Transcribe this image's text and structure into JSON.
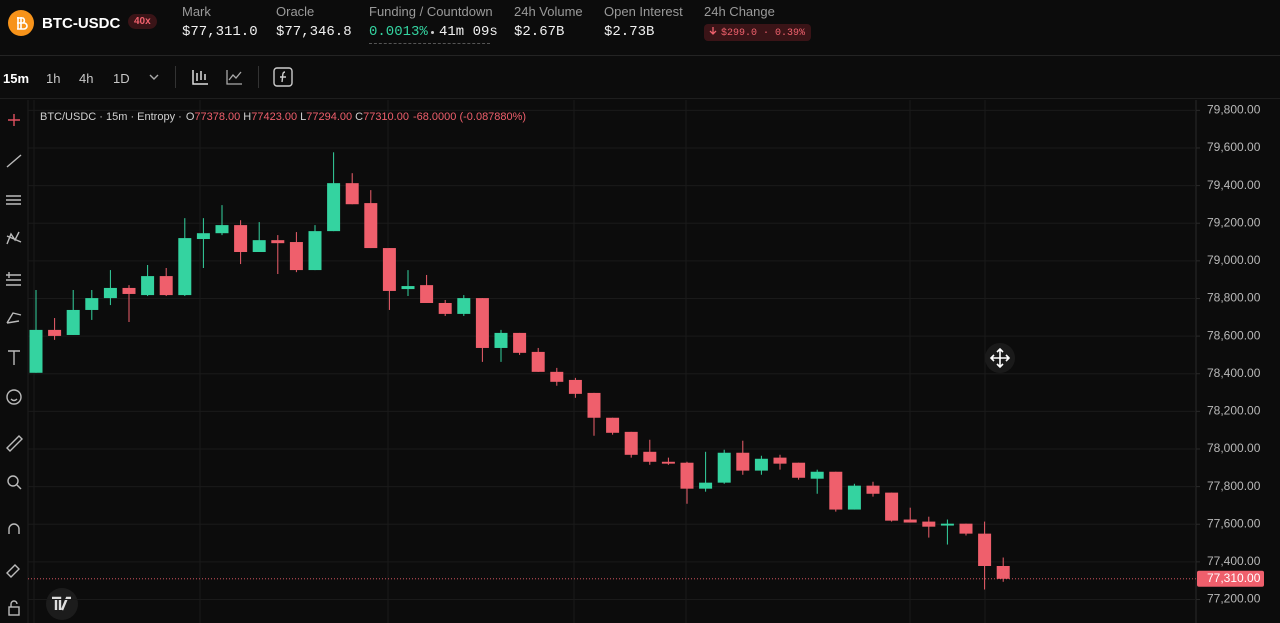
{
  "header": {
    "pair": "BTC-USDC",
    "leverage": "40x",
    "stats": [
      {
        "label": "Mark",
        "value": "$77,311.0"
      },
      {
        "label": "Oracle",
        "value": "$77,346.8"
      },
      {
        "label": "Funding / Countdown",
        "value": "0.0013%",
        "extra": "41m 09s"
      },
      {
        "label": "24h Volume",
        "value": "$2.67B"
      },
      {
        "label": "Open Interest",
        "value": "$2.73B"
      },
      {
        "label": "24h Change",
        "value": "$299.0 · 0.39%"
      }
    ]
  },
  "toolbar": {
    "intervals": [
      "15m",
      "1h",
      "4h",
      "1D"
    ]
  },
  "chart_data": {
    "type": "candlestick",
    "legend": {
      "title": "BTC/USDC · 15m · Entropy ·",
      "ohlc": [
        {
          "key": "O",
          "value": "77378.00"
        },
        {
          "key": "H",
          "value": "77423.00"
        },
        {
          "key": "L",
          "value": "77294.00"
        },
        {
          "key": "C",
          "value": "77310.00"
        }
      ],
      "change": "-68.0000 (-0.087880%)"
    },
    "categories": [
      null,
      null,
      null,
      null,
      null,
      null,
      null,
      null,
      null,
      null,
      null,
      null,
      null,
      null,
      null,
      null,
      null,
      null,
      null,
      null,
      null,
      null,
      null,
      null,
      null,
      null,
      null,
      null,
      null,
      null,
      null,
      null,
      null,
      null,
      null,
      null,
      null,
      null,
      null,
      null,
      null,
      null,
      null,
      null,
      null,
      null,
      null,
      null,
      null,
      null,
      null,
      null,
      null
    ],
    "open": [
      78405,
      78633,
      78606,
      78739,
      78802,
      78856,
      78818,
      78919,
      78818,
      79116,
      79147,
      79190,
      79047,
      79110,
      79100,
      78951,
      79158,
      79413,
      79307,
      79068,
      78850,
      78871,
      78776,
      78718,
      78802,
      78537,
      78617,
      78516,
      78410,
      78367,
      78298,
      78166,
      78091,
      77985,
      77932,
      77927,
      77789,
      77821,
      77980,
      77885,
      77954,
      77927,
      77842,
      77879,
      77678,
      77805,
      77768,
      77625,
      77614,
      77593,
      77603,
      77550,
      77378
    ],
    "high": [
      78845,
      78696,
      78845,
      78845,
      78951,
      78871,
      78978,
      78962,
      79227,
      79227,
      79296,
      79216,
      79206,
      79137,
      79153,
      79190,
      79577,
      79466,
      79376,
      79068,
      78951,
      78925,
      78792,
      78818,
      78802,
      78633,
      78617,
      78537,
      78431,
      78378,
      78298,
      78166,
      78091,
      78049,
      77954,
      77932,
      77985,
      77996,
      78044,
      77964,
      77969,
      77927,
      77890,
      77879,
      77815,
      77826,
      77768,
      77688,
      77640,
      77625,
      77603,
      77614,
      77423
    ],
    "low": [
      78405,
      78580,
      78606,
      78686,
      78765,
      78675,
      78813,
      78813,
      78813,
      78962,
      79137,
      78983,
      79047,
      78930,
      78940,
      78951,
      79158,
      79301,
      79068,
      78739,
      78813,
      78776,
      78707,
      78707,
      78463,
      78463,
      78500,
      78410,
      78336,
      78272,
      78070,
      78076,
      77954,
      77916,
      77916,
      77709,
      77773,
      77815,
      77863,
      77863,
      77890,
      77837,
      77762,
      77667,
      77678,
      77747,
      77614,
      77609,
      77529,
      77492,
      77540,
      77253,
      77294
    ],
    "close": [
      78633,
      78601,
      78739,
      78802,
      78856,
      78824,
      78919,
      78818,
      79121,
      79147,
      79190,
      79047,
      79110,
      79094,
      78951,
      79158,
      79413,
      79301,
      79068,
      78840,
      78866,
      78776,
      78718,
      78802,
      78537,
      78617,
      78511,
      78410,
      78357,
      78293,
      78166,
      78086,
      77969,
      77932,
      77922,
      77789,
      77821,
      77980,
      77885,
      77948,
      77922,
      77847,
      77879,
      77678,
      77805,
      77762,
      77619,
      77609,
      77587,
      77603,
      77550,
      77378,
      77310
    ],
    "up_color": "#34d3a0",
    "down_color": "#ef5f6c",
    "ylim": [
      77075,
      79855
    ],
    "yticks": [
      {
        "value": 77200,
        "label": "77,200.00"
      },
      {
        "value": 77400,
        "label": "77,400.00"
      },
      {
        "value": 77600,
        "label": "77,600.00"
      },
      {
        "value": 77800,
        "label": "77,800.00"
      },
      {
        "value": 78000,
        "label": "78,000.00"
      },
      {
        "value": 78200,
        "label": "78,200.00"
      },
      {
        "value": 78400,
        "label": "78,400.00"
      },
      {
        "value": 78600,
        "label": "78,600.00"
      },
      {
        "value": 78800,
        "label": "78,800.00"
      },
      {
        "value": 79000,
        "label": "79,000.00"
      },
      {
        "value": 79200,
        "label": "79,200.00"
      },
      {
        "value": 79400,
        "label": "79,400.00"
      },
      {
        "value": 79600,
        "label": "79,600.00"
      },
      {
        "value": 79800,
        "label": "79,800.00"
      }
    ],
    "grid": true,
    "last_price": {
      "value": 77310,
      "label": "77,310.00"
    }
  }
}
